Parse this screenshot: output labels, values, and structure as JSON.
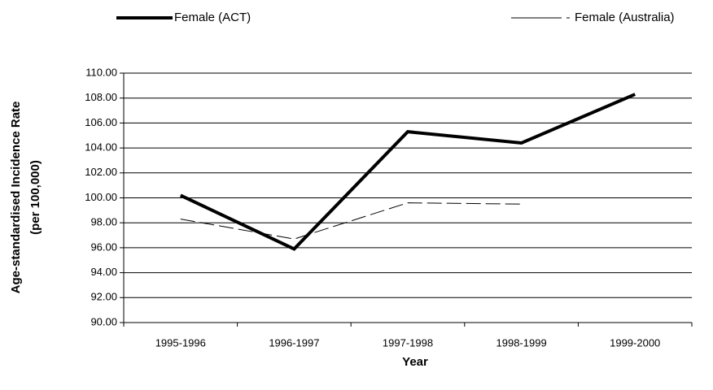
{
  "chart_data": {
    "type": "line",
    "categories": [
      "1995-1996",
      "1996-1997",
      "1997-1998",
      "1998-1999",
      "1999-2000"
    ],
    "series": [
      {
        "name": "Female (ACT)",
        "color": "#000000",
        "values": [
          100.2,
          95.9,
          105.3,
          104.4,
          108.3
        ]
      },
      {
        "name": "Female (Australia)",
        "color": "#000000",
        "values": [
          98.3,
          96.7,
          99.6,
          99.5,
          null
        ]
      }
    ],
    "xlabel": "Year",
    "ylabel": [
      "Age-standardised Incidence Rate",
      "(per 100,000)"
    ],
    "ylim": [
      90,
      110
    ],
    "yticks": [
      {
        "value": 90,
        "label": "90.00"
      },
      {
        "value": 92,
        "label": "92.00"
      },
      {
        "value": 94,
        "label": "94.00"
      },
      {
        "value": 96,
        "label": "96.00"
      },
      {
        "value": 98,
        "label": "98.00"
      },
      {
        "value": 100,
        "label": "100.00"
      },
      {
        "value": 102,
        "label": "102.00"
      },
      {
        "value": 104,
        "label": "104.00"
      },
      {
        "value": 106,
        "label": "106.00"
      },
      {
        "value": 108,
        "label": "108.00"
      },
      {
        "value": 110,
        "label": "110.00"
      }
    ],
    "grid": true,
    "legend": "top"
  }
}
